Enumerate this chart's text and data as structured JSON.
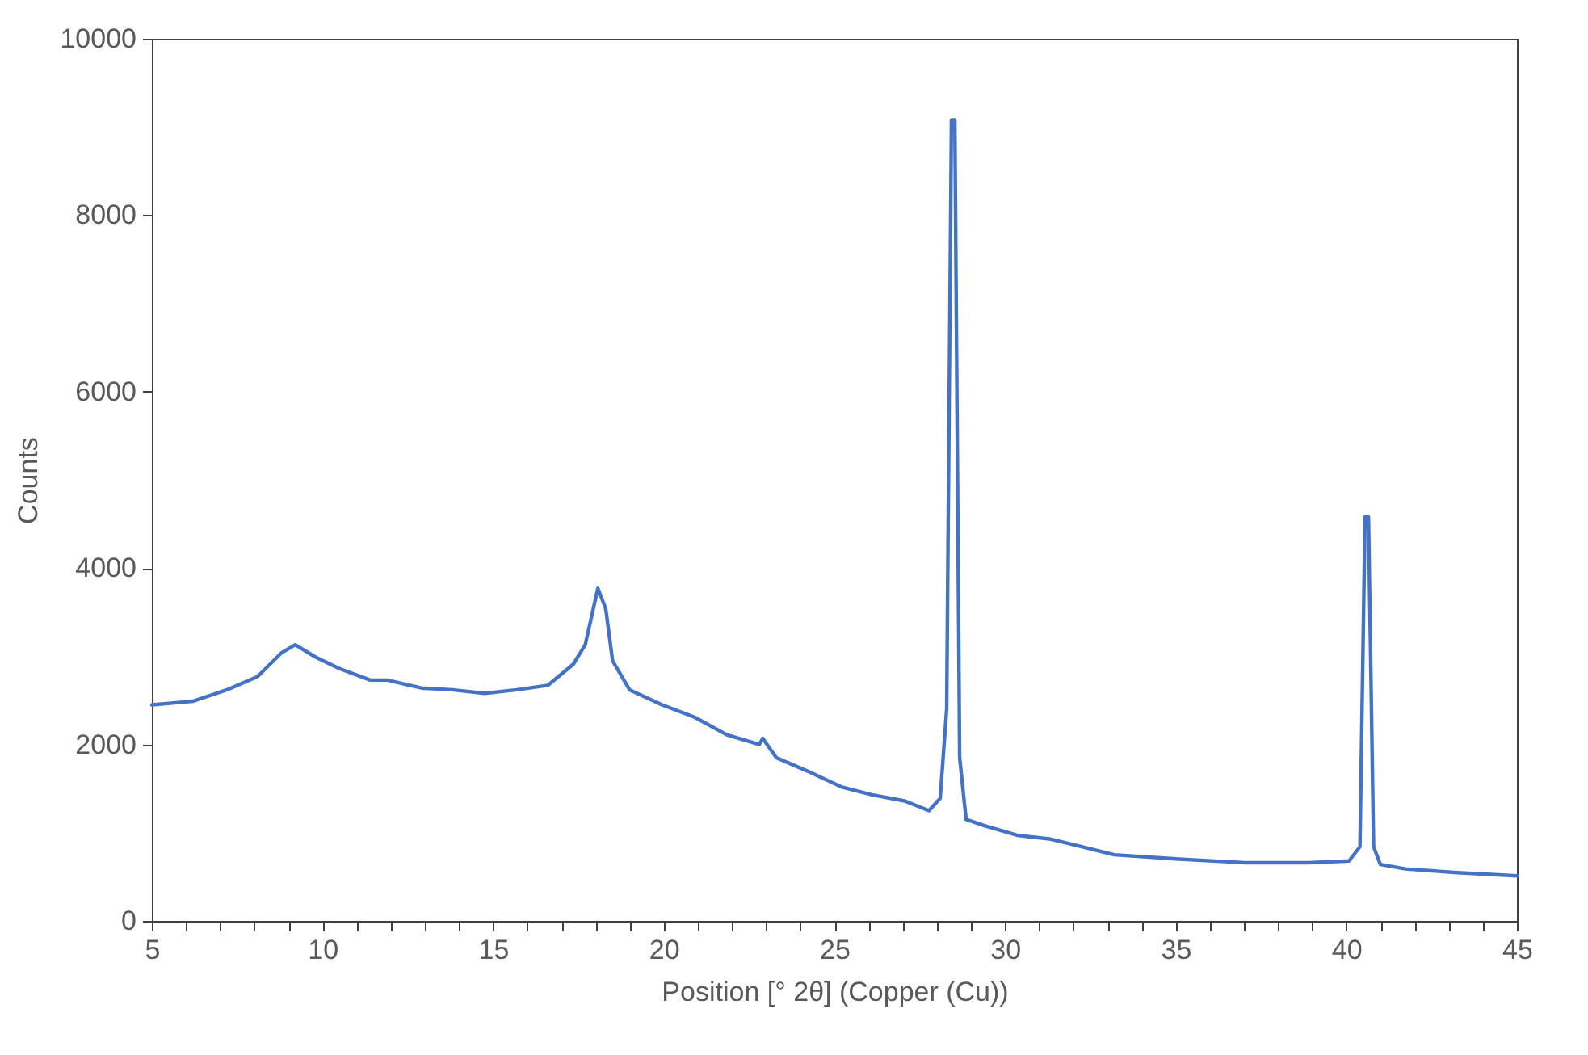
{
  "chart_data": {
    "type": "line",
    "xlabel": "Position [° 2θ] (Copper (Cu))",
    "ylabel": "Counts",
    "xlim": [
      5,
      45
    ],
    "ylim": [
      0,
      10000
    ],
    "xticks": [
      5,
      {
        "value": 6,
        "label": null
      },
      {
        "value": 7,
        "label": null
      },
      {
        "value": 8,
        "label": null
      },
      {
        "value": 9,
        "label": null
      },
      10,
      {
        "value": 11,
        "label": null
      },
      {
        "value": 12,
        "label": null
      },
      {
        "value": 13,
        "label": null
      },
      {
        "value": 14,
        "label": null
      },
      15,
      {
        "value": 16,
        "label": null
      },
      {
        "value": 17,
        "label": null
      },
      {
        "value": 18,
        "label": null
      },
      {
        "value": 19,
        "label": null
      },
      20,
      {
        "value": 21,
        "label": null
      },
      {
        "value": 22,
        "label": null
      },
      {
        "value": 23,
        "label": null
      },
      {
        "value": 24,
        "label": null
      },
      25,
      {
        "value": 26,
        "label": null
      },
      {
        "value": 27,
        "label": null
      },
      {
        "value": 28,
        "label": null
      },
      {
        "value": 29,
        "label": null
      },
      30,
      {
        "value": 31,
        "label": null
      },
      {
        "value": 32,
        "label": null
      },
      {
        "value": 33,
        "label": null
      },
      {
        "value": 34,
        "label": null
      },
      35,
      {
        "value": 36,
        "label": null
      },
      {
        "value": 37,
        "label": null
      },
      {
        "value": 38,
        "label": null
      },
      {
        "value": 39,
        "label": null
      },
      40,
      {
        "value": 41,
        "label": null
      },
      {
        "value": 42,
        "label": null
      },
      {
        "value": 43,
        "label": null
      },
      {
        "value": 44,
        "label": null
      },
      45
    ],
    "yticks": [
      0,
      2000,
      4000,
      6000,
      8000,
      10000
    ],
    "grid": false,
    "marker": "none",
    "line_style": "solid",
    "series": [
      {
        "color": "#4472c4",
        "x": [
          5,
          6.2,
          7.2,
          8.1,
          8.8,
          9.2,
          9.8,
          10.5,
          11.4,
          11.9,
          12.9,
          13.8,
          14.75,
          15.7,
          16.6,
          17.35,
          17.7,
          18.07,
          18.3,
          18.5,
          19.0,
          19.95,
          20.9,
          21.85,
          22.8,
          22.9,
          23.3,
          24.2,
          25.2,
          26.1,
          27.06,
          27.77,
          28.1,
          28.29,
          28.43,
          28.53,
          28.67,
          28.86,
          29.4,
          30.37,
          31.3,
          32.27,
          33.2,
          35.1,
          37.0,
          38.9,
          40.08,
          40.4,
          40.55,
          40.65,
          40.8,
          41.0,
          41.73,
          43.15,
          45
        ],
        "values": [
          2450,
          2490,
          2620,
          2770,
          3040,
          3130,
          2990,
          2860,
          2730,
          2730,
          2640,
          2620,
          2580,
          2620,
          2670,
          2910,
          3130,
          3770,
          3540,
          2950,
          2620,
          2450,
          2310,
          2110,
          2000,
          2070,
          1850,
          1700,
          1520,
          1430,
          1360,
          1250,
          1390,
          2400,
          9080,
          9080,
          1850,
          1150,
          1080,
          970,
          930,
          840,
          750,
          700,
          660,
          660,
          680,
          840,
          4580,
          4580,
          840,
          640,
          590,
          550,
          510
        ]
      }
    ]
  }
}
